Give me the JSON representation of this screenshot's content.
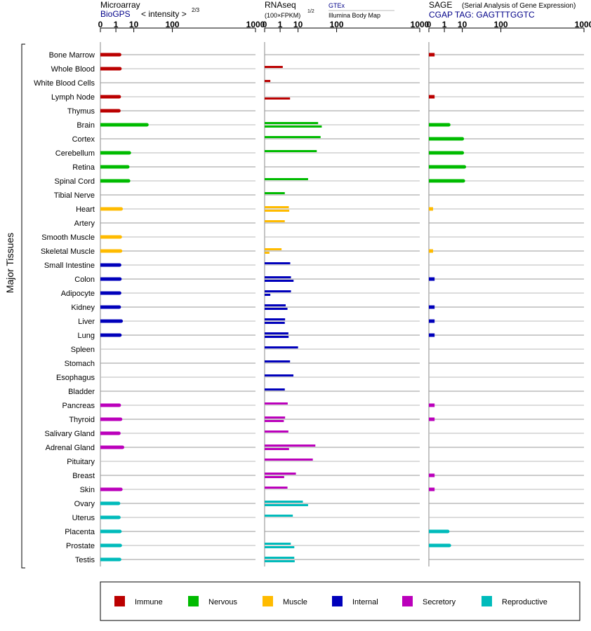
{
  "chart_data": {
    "type": "bar",
    "ylabel": "Major Tissues",
    "panels": [
      {
        "key": "microarray",
        "title": "Microarray",
        "subtitle": "BioGPS",
        "unit": "< intensity >",
        "unit_exp": "2/3"
      },
      {
        "key": "rnaseq",
        "title": "RNAseq",
        "unit": "(100×FPKM)",
        "unit_exp": "1/2",
        "source1": "GTEx",
        "source2": "Illumina Body Map"
      },
      {
        "key": "sage",
        "title": "SAGE",
        "title_note": "(Serial Analysis of Gene Expression)",
        "subtitle": "CGAP TAG: GAGTTTGGTC"
      }
    ],
    "ticks": [
      0,
      1,
      10,
      100,
      1000
    ],
    "xlim": [
      0,
      1000
    ],
    "categories": [
      "Immune",
      "Nervous",
      "Muscle",
      "Internal",
      "Secretory",
      "Reproductive"
    ],
    "colors": {
      "Immune": "#bb0000",
      "Nervous": "#00bb00",
      "Muscle": "#ffbb00",
      "Internal": "#0000bb",
      "Secretory": "#bb00bb",
      "Reproductive": "#00bbbb"
    },
    "tissues": [
      {
        "name": "Bone Marrow",
        "cat": "Immune",
        "microarray": 1.9,
        "gtex": null,
        "ibm": null,
        "sage": 0.05
      },
      {
        "name": "Whole Blood",
        "cat": "Immune",
        "microarray": 2.0,
        "gtex": 1.6,
        "ibm": null,
        "sage": null
      },
      {
        "name": "White Blood Cells",
        "cat": "Immune",
        "microarray": null,
        "gtex": 0.05,
        "ibm": null,
        "sage": null
      },
      {
        "name": "Lymph Node",
        "cat": "Immune",
        "microarray": 1.8,
        "gtex": null,
        "ibm": 4.4,
        "sage": 0.05
      },
      {
        "name": "Thymus",
        "cat": "Immune",
        "microarray": 1.7,
        "gtex": null,
        "ibm": null,
        "sage": null
      },
      {
        "name": "Brain",
        "cat": "Nervous",
        "microarray": 27,
        "gtex": 41,
        "ibm": 50,
        "sage": 2.1
      },
      {
        "name": "Cortex",
        "cat": "Nervous",
        "microarray": null,
        "gtex": 47,
        "ibm": null,
        "sage": 10
      },
      {
        "name": "Cerebellum",
        "cat": "Nervous",
        "microarray": 6.5,
        "gtex": 38,
        "ibm": null,
        "sage": 10
      },
      {
        "name": "Retina",
        "cat": "Nervous",
        "microarray": 5.5,
        "gtex": null,
        "ibm": null,
        "sage": 12
      },
      {
        "name": "Spinal Cord",
        "cat": "Nervous",
        "microarray": 6.0,
        "gtex": 22,
        "ibm": null,
        "sage": 11
      },
      {
        "name": "Tibial Nerve",
        "cat": "Nervous",
        "microarray": null,
        "gtex": 2.2,
        "ibm": null,
        "sage": null
      },
      {
        "name": "Heart",
        "cat": "Muscle",
        "microarray": 2.4,
        "gtex": 3.8,
        "ibm": 4.0,
        "sage": 0.02
      },
      {
        "name": "Artery",
        "cat": "Muscle",
        "microarray": null,
        "gtex": 2.2,
        "ibm": null,
        "sage": null
      },
      {
        "name": "Smooth Muscle",
        "cat": "Muscle",
        "microarray": 2.1,
        "gtex": null,
        "ibm": null,
        "sage": null
      },
      {
        "name": "Skeletal Muscle",
        "cat": "Muscle",
        "microarray": 2.2,
        "gtex": 1.3,
        "ibm": 0.03,
        "sage": 0.02
      },
      {
        "name": "Small Intestine",
        "cat": "Internal",
        "microarray": 1.9,
        "gtex": 4.5,
        "ibm": null,
        "sage": null
      },
      {
        "name": "Colon",
        "cat": "Internal",
        "microarray": 2.0,
        "gtex": 4.9,
        "ibm": 6.5,
        "sage": 0.05
      },
      {
        "name": "Adipocyte",
        "cat": "Internal",
        "microarray": 1.9,
        "gtex": 4.9,
        "ibm": 0.05,
        "sage": null
      },
      {
        "name": "Kidney",
        "cat": "Internal",
        "microarray": 1.8,
        "gtex": 2.5,
        "ibm": 3.2,
        "sage": 0.05
      },
      {
        "name": "Liver",
        "cat": "Internal",
        "microarray": 2.4,
        "gtex": 2.3,
        "ibm": 2.2,
        "sage": 0.05
      },
      {
        "name": "Lung",
        "cat": "Internal",
        "microarray": 2.0,
        "gtex": 3.6,
        "ibm": 3.7,
        "sage": 0.05
      },
      {
        "name": "Spleen",
        "cat": "Internal",
        "microarray": null,
        "gtex": 10,
        "ibm": null,
        "sage": null
      },
      {
        "name": "Stomach",
        "cat": "Internal",
        "microarray": null,
        "gtex": 4.4,
        "ibm": null,
        "sage": null
      },
      {
        "name": "Esophagus",
        "cat": "Internal",
        "microarray": null,
        "gtex": 6.4,
        "ibm": null,
        "sage": null
      },
      {
        "name": "Bladder",
        "cat": "Internal",
        "microarray": null,
        "gtex": 2.2,
        "ibm": null,
        "sage": null
      },
      {
        "name": "Pancreas",
        "cat": "Secretory",
        "microarray": 1.8,
        "gtex": 3.3,
        "ibm": null,
        "sage": 0.05
      },
      {
        "name": "Thyroid",
        "cat": "Secretory",
        "microarray": 2.2,
        "gtex": 2.3,
        "ibm": 1.9,
        "sage": 0.05
      },
      {
        "name": "Salivary Gland",
        "cat": "Secretory",
        "microarray": 1.7,
        "gtex": 3.6,
        "ibm": null,
        "sage": null
      },
      {
        "name": "Adrenal Gland",
        "cat": "Secretory",
        "microarray": 2.9,
        "gtex": 35,
        "ibm": 3.9,
        "sage": null
      },
      {
        "name": "Pituitary",
        "cat": "Secretory",
        "microarray": null,
        "gtex": 30,
        "ibm": null,
        "sage": null
      },
      {
        "name": "Breast",
        "cat": "Secretory",
        "microarray": null,
        "gtex": 8.2,
        "ibm": 2.0,
        "sage": 0.05
      },
      {
        "name": "Skin",
        "cat": "Secretory",
        "microarray": 2.3,
        "gtex": 3.2,
        "ibm": null,
        "sage": 0.05
      },
      {
        "name": "Ovary",
        "cat": "Reproductive",
        "microarray": 1.6,
        "gtex": 15,
        "ibm": 22,
        "sage": null
      },
      {
        "name": "Uterus",
        "cat": "Reproductive",
        "microarray": 1.7,
        "gtex": 6.0,
        "ibm": null,
        "sage": null
      },
      {
        "name": "Placenta",
        "cat": "Reproductive",
        "microarray": 2.0,
        "gtex": null,
        "ibm": null,
        "sage": 1.8
      },
      {
        "name": "Prostate",
        "cat": "Reproductive",
        "microarray": 2.1,
        "gtex": 4.8,
        "ibm": 7.0,
        "sage": 2.3
      },
      {
        "name": "Testis",
        "cat": "Reproductive",
        "microarray": 1.9,
        "gtex": 7.0,
        "ibm": 7.3,
        "sage": null
      }
    ]
  }
}
